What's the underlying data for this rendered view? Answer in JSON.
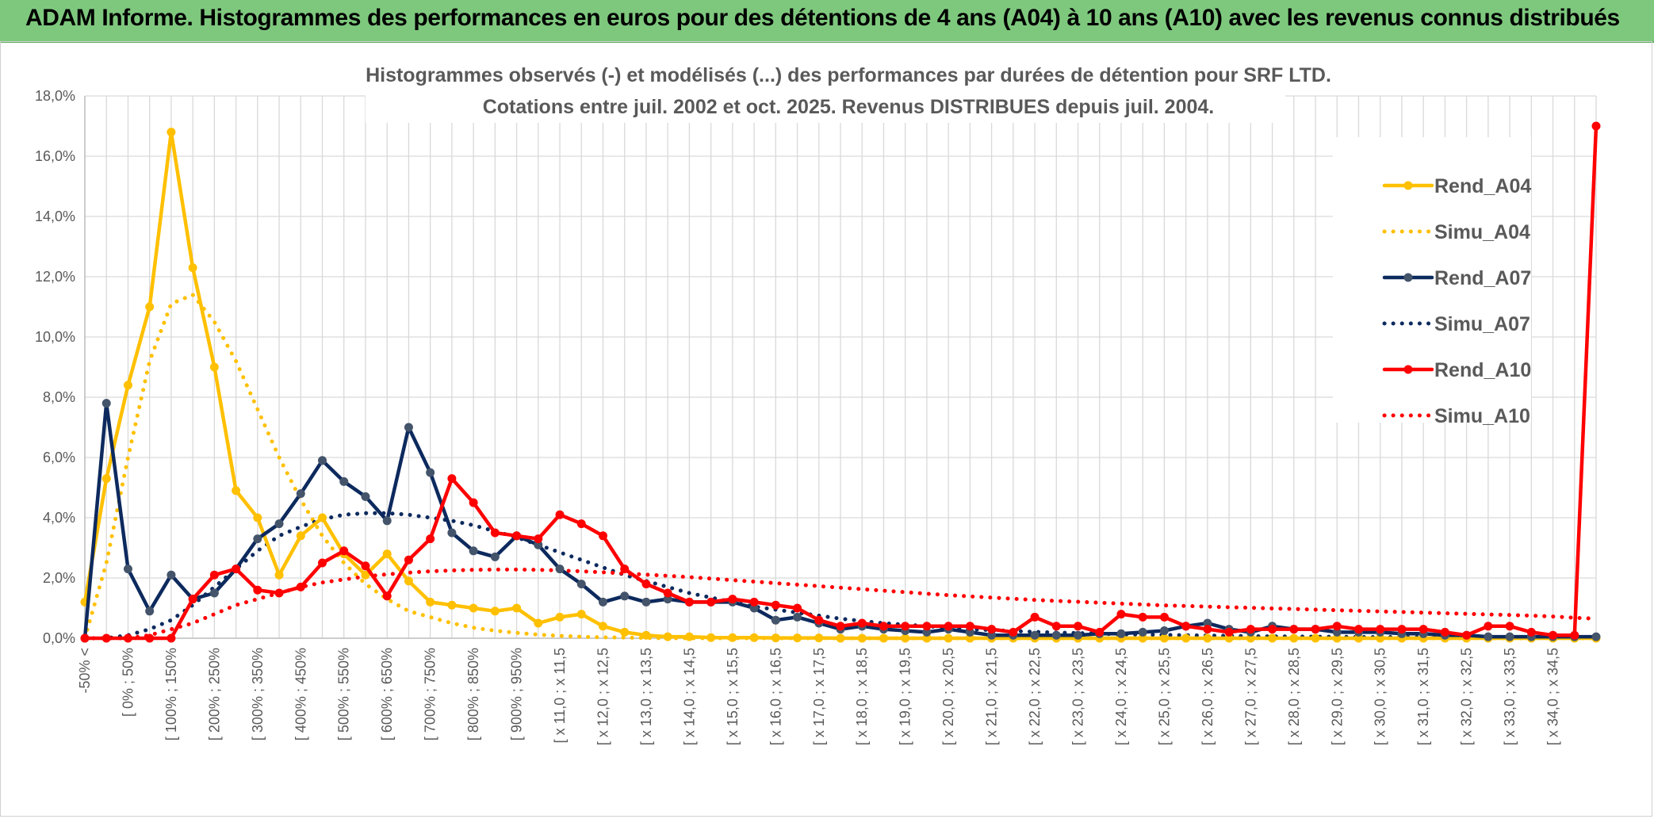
{
  "banner": {
    "title": "ADAM Informe. Histogrammes des performances en euros pour des détentions de 4 ans (A04) à 10 ans (A10) avec les revenus connus distribués"
  },
  "chart_data": {
    "type": "line",
    "title_line1": "Histogrammes observés (-) et modélisés (...) des performances par durées de détention pour SRF LTD.",
    "title_line2": "Cotations entre juil. 2002 et oct. 2025. Revenus DISTRIBUES depuis juil. 2004.",
    "ylim": [
      0,
      18
    ],
    "ytick_labels": [
      "0,0%",
      "2,0%",
      "4,0%",
      "6,0%",
      "8,0%",
      "10,0%",
      "12,0%",
      "14,0%",
      "16,0%",
      "18,0%"
    ],
    "grid": true,
    "legend_position": "top-right",
    "x_labels": [
      "-50% <",
      "[ 0% ; 50%",
      "[ 100% ; 150%",
      "[ 200% ; 250%",
      "[ 300% ; 350%",
      "[ 400% ; 450%",
      "[ 500% ; 550%",
      "[ 600% ; 650%",
      "[ 700% ; 750%",
      "[ 800% ; 850%",
      "[ 900% ; 950%",
      "[ x 11,0 ; x 11,5",
      "[ x 12,0 ; x 12,5",
      "[ x 13,0 ; x 13,5",
      "[ x 14,0 ; x 14,5",
      "[ x 15,0 ; x 15,5",
      "[ x 16,0 ; x 16,5",
      "[ x 17,0 ; x 17,5",
      "[ x 18,0 ; x 18,5",
      "[ x 19,0 ; x 19,5",
      "[ x 20,0 ; x 20,5",
      "[ x 21,0 ; x 21,5",
      "[ x 22,0 ; x 22,5",
      "[ x 23,0 ; x 23,5",
      "[ x 24,0 ; x 24,5",
      "[ x 25,0 ; x 25,5",
      "[ x 26,0 ; x 26,5",
      "[ x 27,0 ; x 27,5",
      "[ x 28,0 ; x 28,5",
      "[ x 29,0 ; x 29,5",
      "[ x 30,0 ; x 30,5",
      "[ x 31,0 ; x 31,5",
      "[ x 32,0 ; x 32,5",
      "[ x 33,0 ; x 33,5",
      "[ x 34,0 ; x 34,5"
    ],
    "x_label_every": 2,
    "n_points": 71,
    "series": [
      {
        "name": "Rend_A04",
        "style": "solid",
        "color": "#FFC000",
        "width": 4.5,
        "marker": true,
        "values": [
          1.2,
          5.3,
          8.4,
          11.0,
          16.8,
          12.3,
          9.0,
          4.9,
          4.0,
          2.1,
          3.4,
          4.0,
          2.8,
          2.1,
          2.8,
          1.9,
          1.2,
          1.1,
          1.0,
          0.9,
          1.0,
          0.5,
          0.7,
          0.8,
          0.4,
          0.2,
          0.1,
          0.05,
          0.05,
          0.02,
          0.02,
          0.02,
          0.01,
          0.01,
          0.01,
          0,
          0,
          0,
          0,
          0,
          0,
          0,
          0,
          0,
          0,
          0,
          0,
          0,
          0,
          0,
          0,
          0,
          0,
          0,
          0,
          0,
          0,
          0,
          0,
          0,
          0,
          0,
          0,
          0,
          0,
          0,
          0,
          0,
          0,
          0,
          0
        ]
      },
      {
        "name": "Simu_A04",
        "style": "dotted",
        "color": "#FFC000",
        "width": 5,
        "marker": false,
        "values": [
          0,
          2.5,
          6.0,
          9.2,
          11.1,
          11.4,
          10.5,
          9.2,
          7.6,
          6.0,
          4.6,
          3.4,
          2.5,
          1.8,
          1.3,
          0.9,
          0.7,
          0.5,
          0.35,
          0.25,
          0.18,
          0.12,
          0.08,
          0.05,
          0.03,
          0.02,
          0.01,
          0,
          0,
          0,
          0,
          0,
          0,
          0,
          0,
          0,
          0,
          0,
          0,
          0,
          0,
          0,
          0,
          0,
          0,
          0,
          0,
          0,
          0,
          0,
          0,
          0,
          0,
          0,
          0,
          0,
          0,
          0,
          0,
          0,
          0,
          0,
          0,
          0,
          0,
          0,
          0,
          0,
          0,
          0,
          0
        ]
      },
      {
        "name": "Rend_A07",
        "style": "solid",
        "color": "#0D2A5E",
        "width": 4.5,
        "marker": true,
        "values": [
          0,
          7.8,
          2.3,
          0.9,
          2.1,
          1.3,
          1.5,
          2.3,
          3.3,
          3.8,
          4.8,
          5.9,
          5.2,
          4.7,
          3.9,
          7.0,
          5.5,
          3.5,
          2.9,
          2.7,
          3.4,
          3.1,
          2.3,
          1.8,
          1.2,
          1.4,
          1.2,
          1.3,
          1.2,
          1.2,
          1.2,
          1.0,
          0.6,
          0.7,
          0.5,
          0.3,
          0.4,
          0.3,
          0.25,
          0.2,
          0.3,
          0.2,
          0.1,
          0.1,
          0.1,
          0.1,
          0.1,
          0.15,
          0.15,
          0.2,
          0.25,
          0.4,
          0.5,
          0.3,
          0.2,
          0.4,
          0.3,
          0.3,
          0.2,
          0.2,
          0.2,
          0.15,
          0.15,
          0.1,
          0.1,
          0.05,
          0.05,
          0.05,
          0.05,
          0.05,
          0.05
        ]
      },
      {
        "name": "Simu_A07",
        "style": "dotted",
        "color": "#0D2A5E",
        "width": 5,
        "marker": false,
        "values": [
          0,
          0,
          0.1,
          0.3,
          0.6,
          1.1,
          1.7,
          2.3,
          2.9,
          3.4,
          3.7,
          3.95,
          4.1,
          4.15,
          4.15,
          4.1,
          4.0,
          3.9,
          3.75,
          3.55,
          3.35,
          3.1,
          2.85,
          2.6,
          2.35,
          2.1,
          1.9,
          1.7,
          1.5,
          1.35,
          1.2,
          1.05,
          0.95,
          0.85,
          0.75,
          0.65,
          0.57,
          0.5,
          0.45,
          0.4,
          0.35,
          0.3,
          0.27,
          0.24,
          0.21,
          0.19,
          0.17,
          0.15,
          0.13,
          0.12,
          0.11,
          0.1,
          0.09,
          0.08,
          0.07,
          0.06,
          0.06,
          0.05,
          0.05,
          0.04,
          0.04,
          0.04,
          0.03,
          0.03,
          0.03,
          0.03,
          0.02,
          0.02,
          0.02,
          0.02,
          0.02
        ]
      },
      {
        "name": "Rend_A10",
        "style": "solid",
        "color": "#FF0000",
        "width": 4.5,
        "marker": true,
        "values": [
          0,
          0,
          0,
          0,
          0,
          1.3,
          2.1,
          2.3,
          1.6,
          1.5,
          1.7,
          2.5,
          2.9,
          2.4,
          1.4,
          2.6,
          3.3,
          5.3,
          4.5,
          3.5,
          3.4,
          3.3,
          4.1,
          3.8,
          3.4,
          2.3,
          1.8,
          1.5,
          1.2,
          1.2,
          1.3,
          1.2,
          1.1,
          1.0,
          0.6,
          0.4,
          0.5,
          0.4,
          0.4,
          0.4,
          0.4,
          0.4,
          0.3,
          0.2,
          0.7,
          0.4,
          0.4,
          0.2,
          0.8,
          0.7,
          0.7,
          0.4,
          0.3,
          0.2,
          0.3,
          0.3,
          0.3,
          0.3,
          0.4,
          0.3,
          0.3,
          0.3,
          0.3,
          0.2,
          0.1,
          0.4,
          0.4,
          0.2,
          0.1,
          0.1,
          17.0
        ]
      },
      {
        "name": "Simu_A10",
        "style": "dotted",
        "color": "#FF0000",
        "width": 5,
        "marker": false,
        "values": [
          0,
          0,
          0,
          0.1,
          0.3,
          0.5,
          0.8,
          1.1,
          1.3,
          1.5,
          1.7,
          1.85,
          1.95,
          2.05,
          2.12,
          2.18,
          2.22,
          2.25,
          2.27,
          2.28,
          2.28,
          2.27,
          2.25,
          2.22,
          2.19,
          2.15,
          2.11,
          2.07,
          2.03,
          1.98,
          1.93,
          1.88,
          1.83,
          1.78,
          1.73,
          1.68,
          1.63,
          1.58,
          1.53,
          1.48,
          1.43,
          1.39,
          1.35,
          1.31,
          1.27,
          1.24,
          1.21,
          1.18,
          1.15,
          1.12,
          1.09,
          1.07,
          1.05,
          1.03,
          1.01,
          0.99,
          0.97,
          0.95,
          0.93,
          0.91,
          0.89,
          0.87,
          0.85,
          0.83,
          0.81,
          0.79,
          0.77,
          0.75,
          0.72,
          0.68,
          0.65
        ]
      }
    ]
  }
}
